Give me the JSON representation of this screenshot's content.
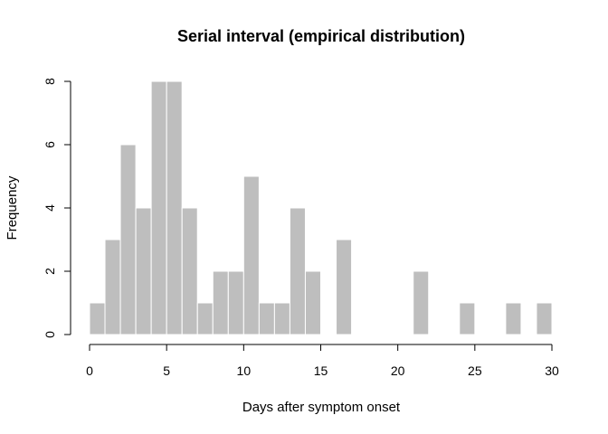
{
  "chart_data": {
    "type": "bar",
    "title": "Serial interval (empirical distribution)",
    "xlabel": "Days after symptom onset",
    "ylabel": "Frequency",
    "bin_width": 1,
    "bin_starts": [
      0,
      1,
      2,
      3,
      4,
      5,
      6,
      7,
      8,
      9,
      10,
      11,
      12,
      13,
      14,
      15,
      16,
      17,
      18,
      19,
      20,
      21,
      22,
      23,
      24,
      25,
      26,
      27,
      28,
      29
    ],
    "values": [
      1,
      3,
      6,
      4,
      8,
      8,
      4,
      1,
      2,
      2,
      5,
      1,
      1,
      4,
      2,
      0,
      3,
      0,
      0,
      0,
      0,
      2,
      0,
      0,
      1,
      0,
      0,
      1,
      0,
      1
    ],
    "xlim": [
      0,
      30
    ],
    "ylim": [
      0,
      8
    ],
    "x_ticks": [
      0,
      5,
      10,
      15,
      20,
      25,
      30
    ],
    "y_ticks": [
      0,
      2,
      4,
      6,
      8
    ],
    "bar_color": "#bebebe",
    "bar_border_color": "#ffffff",
    "grid": false,
    "legend": "none"
  }
}
